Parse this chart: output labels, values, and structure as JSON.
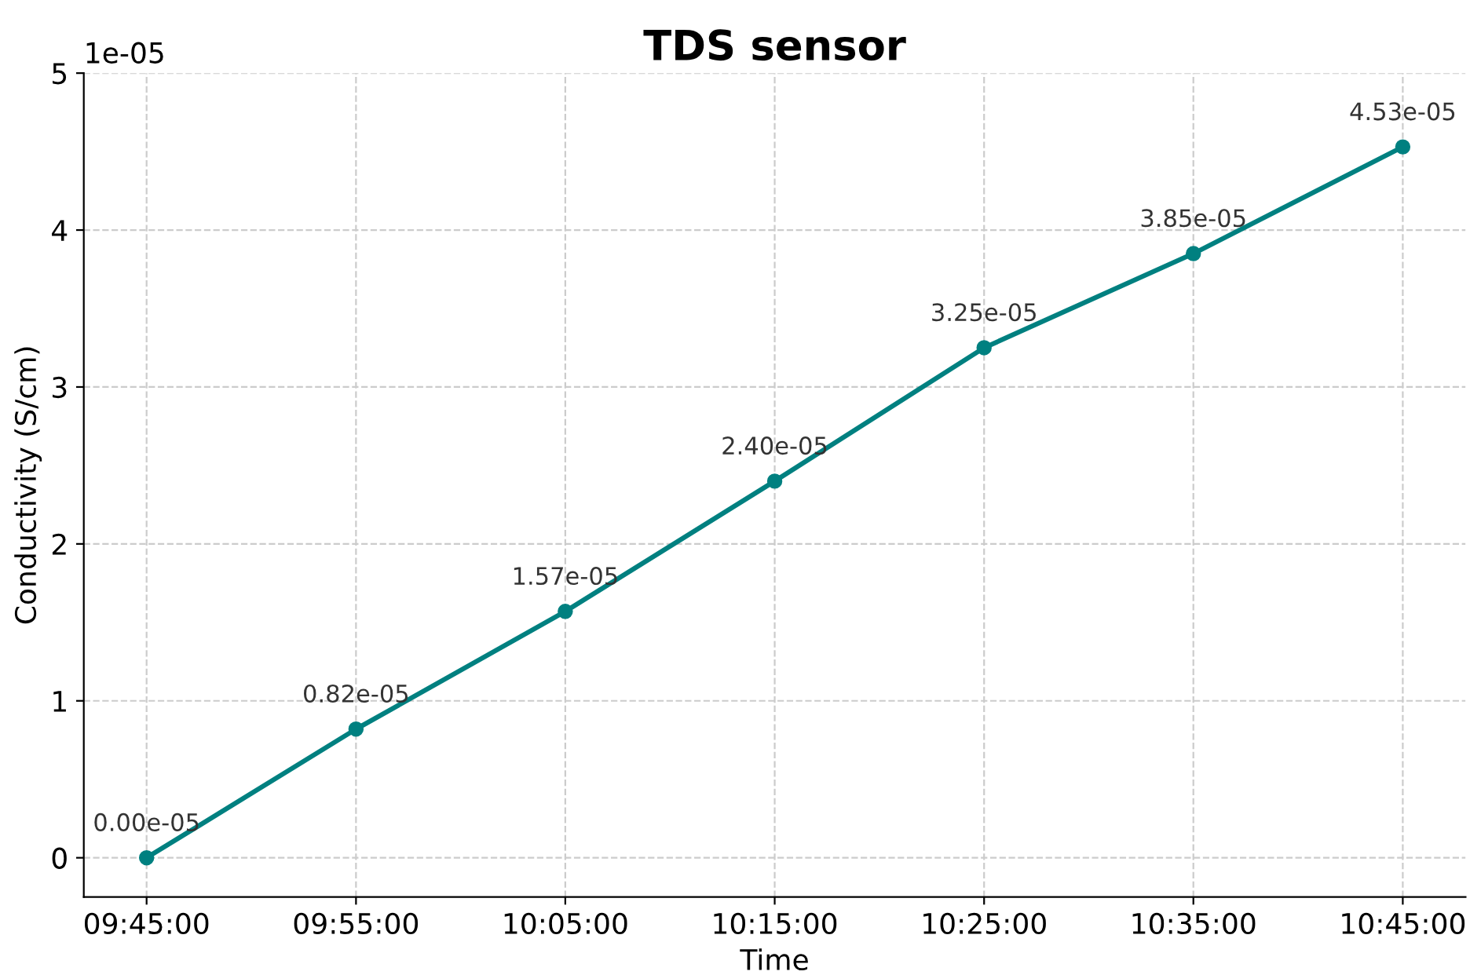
{
  "chart_data": {
    "type": "line",
    "title": "TDS sensor",
    "xlabel": "Time",
    "ylabel": "Conductivity (S/cm)",
    "x": [
      9.75,
      9.9167,
      10.0833,
      10.25,
      10.4167,
      10.5833,
      10.75
    ],
    "series": [
      {
        "color": "#008080",
        "values": [
          0,
          0.82,
          1.57,
          2.4,
          3.25,
          3.85,
          4.53
        ]
      }
    ],
    "xlim": [
      9.7,
      10.8
    ],
    "xticks": [
      {
        "value": 9.75,
        "label": "09:45:00"
      },
      {
        "value": 9.9167,
        "label": "09:55:00"
      },
      {
        "value": 10.0833,
        "label": "10:05:00"
      },
      {
        "value": 10.25,
        "label": "10:15:00"
      },
      {
        "value": 10.4167,
        "label": "10:25:00"
      },
      {
        "value": 10.5833,
        "label": "10:35:00"
      },
      {
        "value": 10.75,
        "label": "10:45:00"
      }
    ],
    "ylim": [
      -0.25,
      5
    ],
    "yticks": [
      0,
      1,
      2,
      3,
      4,
      5
    ],
    "annotations": [
      "1e-05",
      {
        "text": "0.00e-05",
        "x": 9.75,
        "y": 0
      },
      {
        "text": "0.82e-05",
        "x": 9.9167,
        "y": 0.82
      },
      {
        "text": "1.57e-05",
        "x": 10.0833,
        "y": 1.57
      },
      {
        "text": "2.40e-05",
        "x": 10.25,
        "y": 2.4
      },
      {
        "text": "3.25e-05",
        "x": 10.4167,
        "y": 3.25
      },
      {
        "text": "3.85e-05",
        "x": 10.5833,
        "y": 3.85
      },
      {
        "text": "4.53e-05",
        "x": 10.75,
        "y": 4.53
      }
    ],
    "grid": true,
    "marker": "circle",
    "line_style": "solid"
  }
}
